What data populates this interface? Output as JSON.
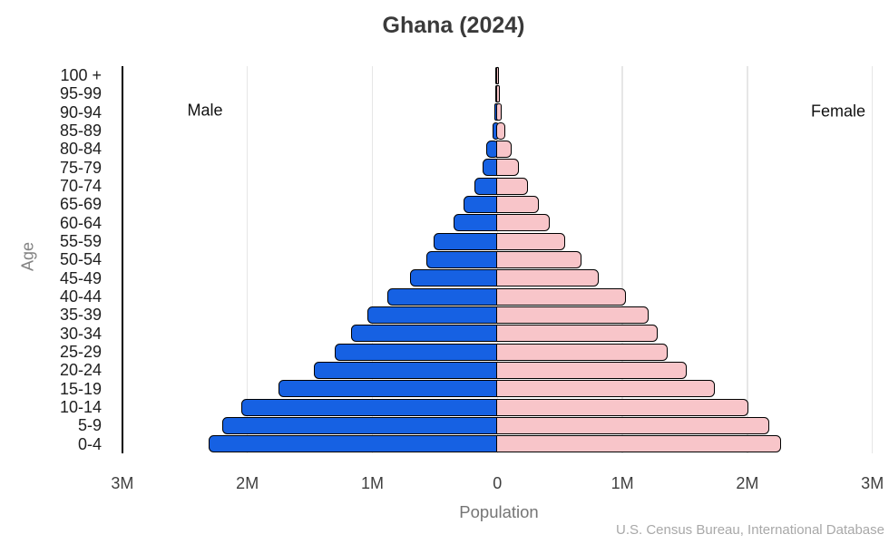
{
  "title": "Ghana (2024)",
  "annotations": {
    "left": "Male",
    "right": "Female"
  },
  "axes": {
    "y_label": "Age",
    "x_label": "Population"
  },
  "source": "U.S. Census Bureau, International Database",
  "colors": {
    "male_bar": "#1661e3",
    "female_bar": "#f8c5c9",
    "bar_outline": "#000000",
    "gridline": "#e6e6e6",
    "axis_line": "#000000",
    "title_text": "#3a3a3a"
  },
  "chart_data": {
    "type": "bar",
    "subtype": "population-pyramid",
    "orientation": "horizontal",
    "title": "Ghana (2024)",
    "xlabel": "Population",
    "ylabel": "Age",
    "unit": "millions of people",
    "xlim": [
      -3,
      3
    ],
    "x_ticks": [
      -3,
      -2,
      -1,
      0,
      1,
      2,
      3
    ],
    "x_tick_labels": [
      "3M",
      "2M",
      "1M",
      "0",
      "1M",
      "2M",
      "3M"
    ],
    "grid": true,
    "legend_position": "in-plot text annotations (Male left, Female right)",
    "categories_top_to_bottom": [
      "100 +",
      "95-99",
      "90-94",
      "85-89",
      "80-84",
      "75-79",
      "70-74",
      "65-69",
      "60-64",
      "55-59",
      "50-54",
      "45-49",
      "40-44",
      "35-39",
      "30-34",
      "25-29",
      "20-24",
      "15-19",
      "10-14",
      "5-9",
      "0-4"
    ],
    "series": [
      {
        "name": "Male",
        "side": "left",
        "color": "#1661e3",
        "values": [
          0.002,
          0.004,
          0.01,
          0.03,
          0.08,
          0.11,
          0.17,
          0.26,
          0.34,
          0.5,
          0.56,
          0.69,
          0.87,
          1.03,
          1.16,
          1.29,
          1.46,
          1.74,
          2.04,
          2.19,
          2.3
        ]
      },
      {
        "name": "Female",
        "side": "right",
        "color": "#f8c5c9",
        "values": [
          0.003,
          0.006,
          0.02,
          0.05,
          0.1,
          0.16,
          0.23,
          0.32,
          0.41,
          0.53,
          0.66,
          0.8,
          1.02,
          1.2,
          1.27,
          1.35,
          1.5,
          1.73,
          2.0,
          2.16,
          2.26
        ]
      }
    ],
    "source": "U.S. Census Bureau, International Database"
  }
}
